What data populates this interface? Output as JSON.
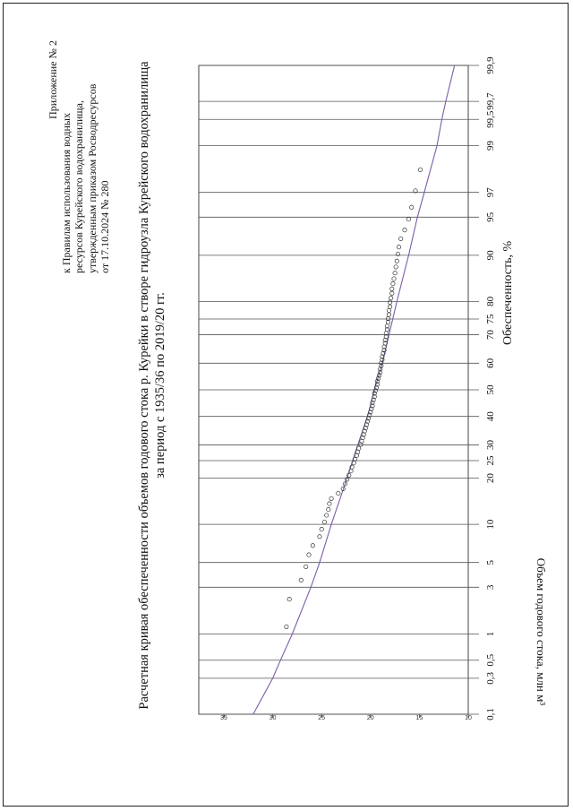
{
  "appendix": {
    "lines": [
      "Приложение № 2",
      "к Правилам использования водных",
      "ресурсов Курейского водохранилища,",
      "утвержденным приказом Росводресурсов",
      "от 17.10.2024 № 280"
    ]
  },
  "chart_data": {
    "type": "scatter",
    "title": "Расчетная кривая обеспеченности объемов годового стока р. Курейки в створе гидроузла Курейского водохранилища",
    "subtitle": "за период с 1935/36 по 2019/20 гг.",
    "xlabel": "Обеспеченность, %",
    "ylabel": "Объем годового стока, млн м³",
    "x_scale": "probability",
    "x_ticks": [
      "0,1",
      "0,3",
      "0,5",
      "1",
      "3",
      "5",
      "10",
      "20",
      "25",
      "30",
      "40",
      "50",
      "60",
      "70",
      "75",
      "80",
      "90",
      "95",
      "97",
      "99",
      "99,5",
      "99,7",
      "99,9"
    ],
    "y_ticks": [
      "10",
      "15",
      "20",
      "25",
      "30",
      "35"
    ],
    "ylim": [
      10,
      35
    ],
    "grid": true,
    "curve": {
      "x": [
        0.1,
        0.3,
        0.5,
        1,
        3,
        5,
        10,
        20,
        30,
        40,
        50,
        60,
        70,
        80,
        90,
        95,
        97,
        99,
        99.5,
        99.7,
        99.9
      ],
      "y": [
        32.0,
        30.0,
        29.2,
        28.0,
        26.1,
        25.2,
        24.0,
        22.4,
        21.3,
        20.3,
        19.6,
        18.8,
        18.1,
        17.3,
        16.1,
        15.2,
        14.5,
        13.2,
        12.7,
        12.3,
        11.4
      ]
    },
    "observed": {
      "x": [
        1.2,
        2.3,
        3.5,
        4.6,
        5.8,
        6.9,
        8.1,
        9.2,
        10.4,
        11.6,
        12.7,
        13.9,
        15.0,
        16.2,
        17.3,
        18.5,
        19.7,
        20.8,
        22.0,
        23.1,
        24.3,
        25.4,
        26.6,
        27.7,
        28.9,
        30.1,
        31.2,
        32.4,
        33.5,
        34.7,
        35.8,
        37.0,
        38.2,
        39.3,
        40.5,
        41.6,
        42.8,
        43.9,
        45.1,
        46.2,
        47.4,
        48.6,
        49.7,
        50.9,
        52.0,
        53.2,
        54.3,
        55.5,
        56.6,
        57.8,
        59.0,
        60.1,
        61.3,
        62.4,
        63.6,
        64.7,
        65.9,
        67.1,
        68.2,
        69.4,
        70.5,
        71.7,
        72.8,
        74.0,
        75.1,
        76.3,
        77.5,
        78.6,
        79.8,
        80.9,
        82.1,
        83.2,
        84.4,
        85.5,
        86.7,
        87.9,
        89.0,
        90.2,
        91.3,
        92.5,
        93.6,
        94.8,
        95.9,
        97.1,
        98.2
      ],
      "y": [
        28.6,
        28.3,
        27.1,
        26.6,
        26.3,
        25.9,
        25.2,
        25.0,
        24.7,
        24.5,
        24.3,
        24.2,
        24.0,
        23.3,
        22.8,
        22.6,
        22.4,
        22.2,
        22.0,
        21.9,
        21.7,
        21.6,
        21.4,
        21.3,
        21.2,
        21.0,
        20.9,
        20.8,
        20.7,
        20.6,
        20.5,
        20.4,
        20.3,
        20.2,
        20.1,
        20.0,
        19.9,
        19.8,
        19.8,
        19.7,
        19.6,
        19.6,
        19.5,
        19.4,
        19.3,
        19.3,
        19.2,
        19.1,
        19.0,
        19.0,
        18.9,
        18.9,
        18.8,
        18.8,
        18.7,
        18.6,
        18.6,
        18.5,
        18.5,
        18.4,
        18.4,
        18.3,
        18.3,
        18.2,
        18.2,
        18.1,
        18.1,
        18.0,
        18.0,
        17.9,
        17.8,
        17.8,
        17.7,
        17.6,
        17.5,
        17.4,
        17.3,
        17.2,
        17.1,
        16.9,
        16.5,
        16.1,
        15.8,
        15.4,
        14.9
      ]
    },
    "colors": {
      "curve": "#7b5ea7",
      "points": "#333333",
      "grid": "#555555"
    }
  }
}
